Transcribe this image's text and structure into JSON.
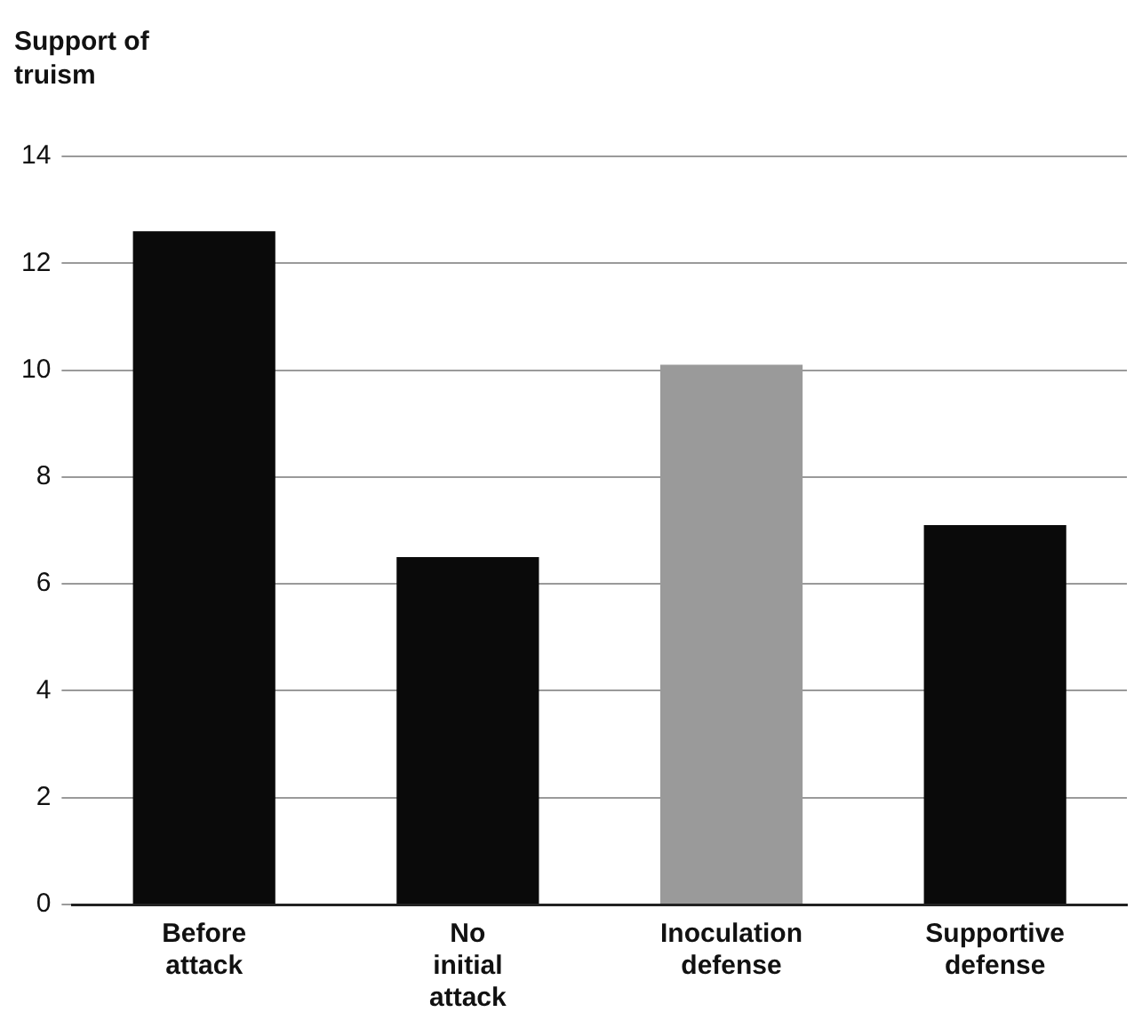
{
  "chart_data": {
    "type": "bar",
    "ylabel": "Support of truism",
    "categories": [
      "Before attack",
      "No initial attack",
      "Inoculation defense",
      "Supportive defense"
    ],
    "values": [
      12.6,
      6.5,
      10.1,
      7.1
    ],
    "colors": [
      "#0a0a0a",
      "#0a0a0a",
      "#9a9a9a",
      "#0a0a0a"
    ],
    "ylim": [
      0,
      14
    ],
    "yticks": [
      0,
      2,
      4,
      6,
      8,
      10,
      12,
      14
    ],
    "grid": "y"
  }
}
